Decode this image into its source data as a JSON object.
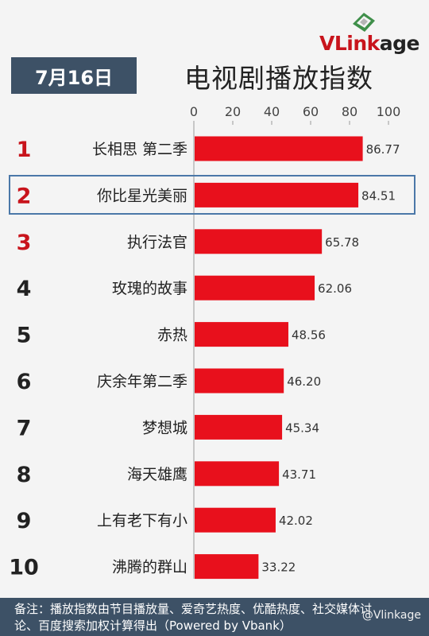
{
  "brand": {
    "name_red": "VLink",
    "name_dark": "age"
  },
  "date": "7月16日",
  "chart_data": {
    "type": "bar",
    "orientation": "horizontal",
    "title": "电视剧播放指数",
    "ranks": [
      "1",
      "2",
      "3",
      "4",
      "5",
      "6",
      "7",
      "8",
      "9",
      "10"
    ],
    "rank_colors": [
      "#c8141c",
      "#c8141c",
      "#c8141c",
      "#222222",
      "#222222",
      "#222222",
      "#222222",
      "#222222",
      "#222222",
      "#222222"
    ],
    "categories": [
      "长相思 第二季",
      "你比星光美丽",
      "执行法官",
      "玫瑰的故事",
      "赤热",
      "庆余年第二季",
      "梦想城",
      "海天雄鹰",
      "上有老下有小",
      "沸腾的群山"
    ],
    "values": [
      86.77,
      84.51,
      65.78,
      62.06,
      48.56,
      46.2,
      45.34,
      43.71,
      42.02,
      33.22
    ],
    "value_labels": [
      "86.77",
      "84.51",
      "65.78",
      "62.06",
      "48.56",
      "46.20",
      "45.34",
      "43.71",
      "42.02",
      "33.22"
    ],
    "xlim": [
      0,
      100
    ],
    "xticks": [
      "0",
      "20",
      "40",
      "60",
      "80",
      "100"
    ],
    "tick_values": [
      0,
      20,
      40,
      60,
      80,
      100
    ],
    "highlighted": "你比星光美丽",
    "bar_color": "#e8101c",
    "grid": false
  },
  "footnote": {
    "line1": "备注：播放指数由节目播放量、爱奇艺热度、优酷热度、社交媒体讨",
    "line2": "论、百度搜索加权计算得出（Powered by Vbank）"
  },
  "watermark": "@Vlinkage"
}
